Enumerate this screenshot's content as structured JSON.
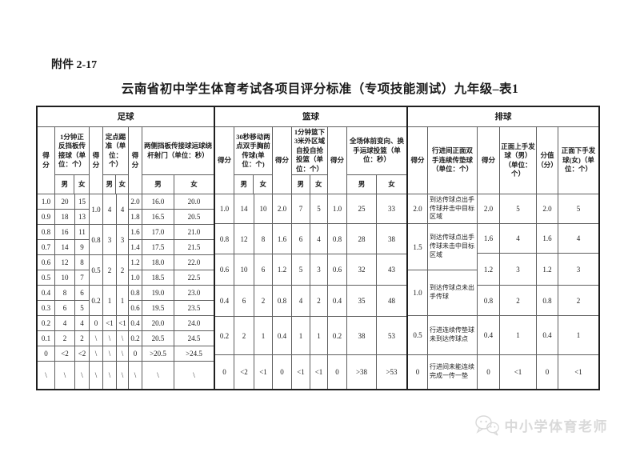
{
  "page": {
    "attachment": "附件 2-17",
    "title": "云南省初中学生体育考试各项目评分标准（专项技能测试）九年级–表1"
  },
  "watermark": {
    "label": "中小学体育老师",
    "icon": "wechat-icon",
    "color": "#d9d9d9"
  },
  "table": {
    "sections": [
      {
        "sport": "足球",
        "header": {
          "score_label": "得分",
          "groups": [
            {
              "event": "1分钟正反挡板传接球（单位：个）",
              "male": "男",
              "female": "女"
            },
            {
              "event": "定点踢准（单位：个）",
              "male": "男",
              "female": "女"
            },
            {
              "event": "两侧挡板传接球运球绕杆射门（单位：秒）",
              "male": "男",
              "female": "女"
            }
          ]
        },
        "columns": [
          {
            "role": "score",
            "values": [
              "1.0",
              "0.9",
              "0.8",
              "0.7",
              "0.6",
              "0.5",
              "0.4",
              "0.3",
              "0.2",
              "0.1",
              "0",
              "\\"
            ]
          },
          {
            "role": "male",
            "values": [
              "20",
              "18",
              "16",
              "14",
              "12",
              "10",
              "8",
              "6",
              "4",
              "2",
              "<2",
              "\\"
            ]
          },
          {
            "role": "female",
            "values": [
              "15",
              "13",
              "11",
              "9",
              "8",
              "7",
              "6",
              "5",
              "4",
              "2",
              "<2",
              "\\"
            ]
          },
          {
            "role": "score",
            "values": [
              "1.0",
              "0.8",
              "0.5",
              "0.2",
              "0",
              "\\",
              "\\",
              "\\"
            ],
            "spans": [
              2,
              2,
              2,
              2,
              1,
              1,
              1,
              1
            ]
          },
          {
            "role": "male",
            "values": [
              "4",
              "3",
              "2",
              "1",
              "<1",
              "\\",
              "\\",
              "\\"
            ],
            "spans": [
              2,
              2,
              2,
              2,
              1,
              1,
              1,
              1
            ]
          },
          {
            "role": "female",
            "values": [
              "4",
              "3",
              "2",
              "1",
              "<1",
              "\\",
              "\\",
              "\\"
            ],
            "spans": [
              2,
              2,
              2,
              2,
              1,
              1,
              1,
              1
            ]
          },
          {
            "role": "score",
            "values": [
              "2.0",
              "1.8",
              "1.6",
              "1.4",
              "1.2",
              "1.0",
              "0.8",
              "0.6",
              "0.4",
              "0.2",
              "0",
              "\\"
            ]
          },
          {
            "role": "male",
            "values": [
              "16.0",
              "16.5",
              "17.0",
              "17.5",
              "18.0",
              "18.5",
              "19.0",
              "19.5",
              "20.0",
              "20.5",
              ">20.5",
              "\\"
            ]
          },
          {
            "role": "female",
            "values": [
              "20.0",
              "20.5",
              "21.0",
              "21.5",
              "22.0",
              "22.5",
              "23.0",
              "23.5",
              "24.0",
              "24.5",
              ">24.5",
              "\\"
            ]
          }
        ]
      },
      {
        "sport": "篮球",
        "header": {
          "score_label": "得分",
          "groups": [
            {
              "event": "30秒移动两点双手胸前传球(单位：个)",
              "male": "男",
              "female": "女"
            },
            {
              "event": "1分钟篮下3米外区域自投自抢投篮（单位：个）",
              "male": "男",
              "female": "女"
            },
            {
              "event": "全场体前变向、换手运球投篮（单位：秒）",
              "male": "男",
              "female": "女"
            }
          ]
        },
        "columns": [
          {
            "role": "score",
            "values": [
              "1.0",
              "0.8",
              "0.6",
              "0.4",
              "0.2",
              "0"
            ]
          },
          {
            "role": "male",
            "values": [
              "14",
              "12",
              "10",
              "6",
              "2",
              "<2"
            ]
          },
          {
            "role": "female",
            "values": [
              "10",
              "8",
              "6",
              "2",
              "1",
              "<1"
            ]
          },
          {
            "role": "score",
            "values": [
              "2.0",
              "1.6",
              "1.2",
              "0.8",
              "0.4",
              "0"
            ]
          },
          {
            "role": "male",
            "values": [
              "7",
              "6",
              "5",
              "4",
              "1",
              "<1"
            ]
          },
          {
            "role": "female",
            "values": [
              "5",
              "4",
              "3",
              "2",
              "1",
              "<1"
            ]
          },
          {
            "role": "score",
            "values": [
              "1.0",
              "0.8",
              "0.6",
              "0.4",
              "0.2",
              "0"
            ]
          },
          {
            "role": "male",
            "values": [
              "25",
              "28",
              "32",
              "35",
              "38",
              ">38"
            ]
          },
          {
            "role": "female",
            "values": [
              "33",
              "38",
              "43",
              "48",
              "53",
              ">53"
            ]
          }
        ]
      },
      {
        "sport": "排球",
        "header": {
          "cells": [
            "得分",
            "行进间正面双手连续传垫球（单位：个）",
            "得分",
            "正面上手发球（男）（单位：个）",
            "分值（分）",
            "正面下手发球(女)（单位：个）"
          ]
        },
        "columns": [
          {
            "role": "score",
            "values": [
              "2.0",
              "1.5",
              "1.0",
              "0.5",
              "0"
            ]
          },
          {
            "role": "desc",
            "values": [
              "到达传球点出手传球并击中目标区域",
              "到达传球点出手传球未击中目标区域",
              "到达传球点未出手传球",
              "行进连续传垫球未到达传球点",
              "行进间未能连续完成一传一垫"
            ]
          },
          {
            "role": "score",
            "values": [
              "2.0",
              "1.6",
              "1.2",
              "0.8",
              "0.4",
              "0"
            ]
          },
          {
            "role": "male",
            "values": [
              "5",
              "4",
              "3",
              "2",
              "1",
              "<1"
            ]
          },
          {
            "role": "value",
            "values": [
              "2.0",
              "1.6",
              "1.2",
              "0.8",
              "0.4",
              "0"
            ]
          },
          {
            "role": "female",
            "values": [
              "5",
              "4",
              "3",
              "2",
              "1",
              "<1"
            ]
          }
        ]
      }
    ]
  }
}
